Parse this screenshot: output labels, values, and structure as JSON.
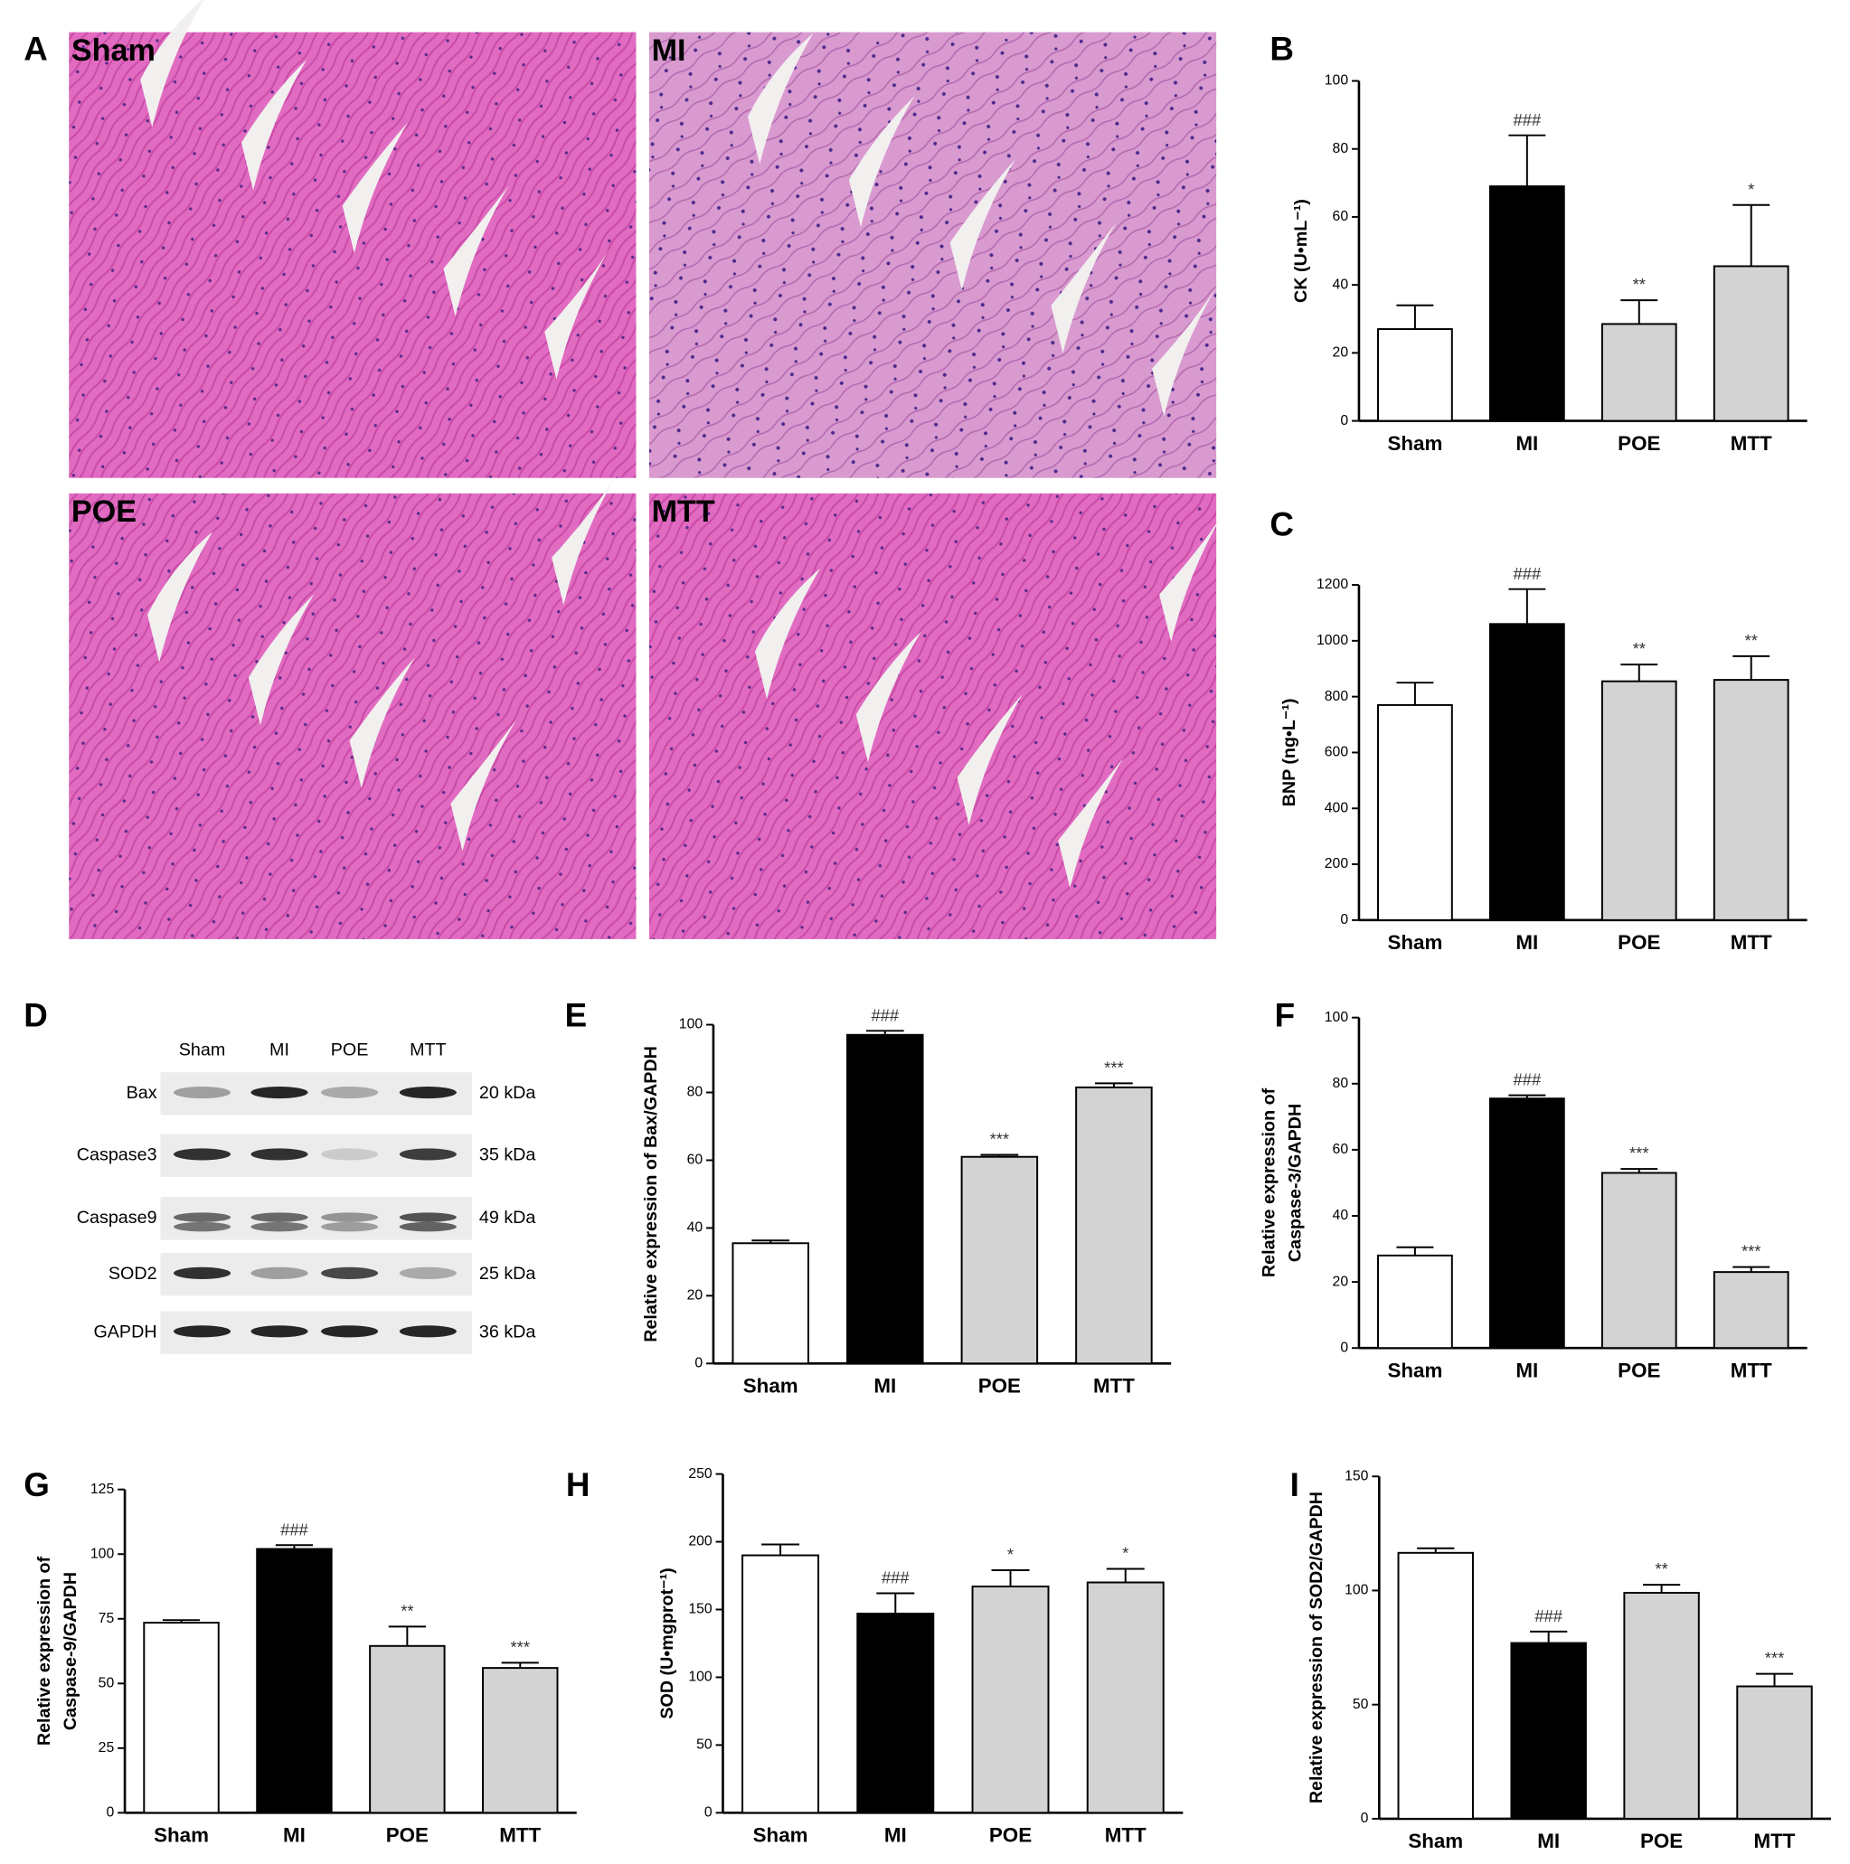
{
  "histology": {
    "panel": "A",
    "images": [
      "Sham",
      "MI",
      "POE",
      "MTT"
    ]
  },
  "western_blot": {
    "panel": "D",
    "lanes": [
      "Sham",
      "MI",
      "POE",
      "MTT"
    ],
    "proteins": [
      {
        "name": "Bax",
        "size": "20 kDa"
      },
      {
        "name": "Caspase3",
        "size": "35 kDa"
      },
      {
        "name": "Caspase9",
        "size": "49 kDa"
      },
      {
        "name": "SOD2",
        "size": "25 kDa"
      },
      {
        "name": "GAPDH",
        "size": "36 kDa"
      }
    ]
  },
  "chart_data": [
    {
      "type": "bar",
      "panel": "B",
      "ylabel": [
        "CK (U•mL⁻¹)"
      ],
      "categories": [
        "Sham",
        "MI",
        "POE",
        "MTT"
      ],
      "values": [
        27,
        69,
        28.5,
        45.5
      ],
      "errors": [
        7,
        15,
        7,
        18
      ],
      "annotations": [
        null,
        "###",
        "**",
        "*"
      ],
      "colors": [
        "#ffffff",
        "#000000",
        "#d3d3d3",
        "#d3d3d3"
      ],
      "ylim": [
        0,
        100
      ],
      "yticks": [
        0,
        20,
        40,
        60,
        80,
        100
      ]
    },
    {
      "type": "bar",
      "panel": "C",
      "ylabel": [
        "BNP (ng•L⁻¹)"
      ],
      "categories": [
        "Sham",
        "MI",
        "POE",
        "MTT"
      ],
      "values": [
        770,
        1060,
        855,
        860
      ],
      "errors": [
        80,
        125,
        60,
        85
      ],
      "annotations": [
        null,
        "###",
        "**",
        "**"
      ],
      "colors": [
        "#ffffff",
        "#000000",
        "#d3d3d3",
        "#d3d3d3"
      ],
      "ylim": [
        0,
        1200
      ],
      "yticks": [
        0,
        200,
        400,
        600,
        800,
        1000,
        1200
      ]
    },
    {
      "type": "bar",
      "panel": "E",
      "ylabel": [
        "Relative expression of Bax/GAPDH"
      ],
      "categories": [
        "Sham",
        "MI",
        "POE",
        "MTT"
      ],
      "values": [
        35.5,
        97,
        61,
        81.5
      ],
      "errors": [
        0.8,
        1.2,
        0.6,
        1.2
      ],
      "annotations": [
        null,
        "###",
        "***",
        "***"
      ],
      "colors": [
        "#ffffff",
        "#000000",
        "#d3d3d3",
        "#d3d3d3"
      ],
      "ylim": [
        0,
        100
      ],
      "yticks": [
        0,
        20,
        40,
        60,
        80,
        100
      ]
    },
    {
      "type": "bar",
      "panel": "F",
      "ylabel": [
        "Relative expression of",
        "Caspase-3/GAPDH"
      ],
      "categories": [
        "Sham",
        "MI",
        "POE",
        "MTT"
      ],
      "values": [
        28,
        75.5,
        53,
        23
      ],
      "errors": [
        2.5,
        1,
        1.2,
        1.5
      ],
      "annotations": [
        null,
        "###",
        "***",
        "***"
      ],
      "colors": [
        "#ffffff",
        "#000000",
        "#d3d3d3",
        "#d3d3d3"
      ],
      "ylim": [
        0,
        100
      ],
      "yticks": [
        0,
        20,
        40,
        60,
        80,
        100
      ]
    },
    {
      "type": "bar",
      "panel": "G",
      "ylabel": [
        "Relative expression of",
        "Caspase-9/GAPDH"
      ],
      "categories": [
        "Sham",
        "MI",
        "POE",
        "MTT"
      ],
      "values": [
        73.5,
        102,
        64.5,
        56
      ],
      "errors": [
        1,
        1.5,
        7.5,
        2
      ],
      "annotations": [
        null,
        "###",
        "**",
        "***"
      ],
      "colors": [
        "#ffffff",
        "#000000",
        "#d3d3d3",
        "#d3d3d3"
      ],
      "ylim": [
        0,
        125
      ],
      "yticks": [
        0,
        25,
        50,
        75,
        100,
        125
      ]
    },
    {
      "type": "bar",
      "panel": "H",
      "ylabel": [
        "SOD (U•mgprot⁻¹)"
      ],
      "categories": [
        "Sham",
        "MI",
        "POE",
        "MTT"
      ],
      "values": [
        190,
        147,
        167,
        170
      ],
      "errors": [
        8,
        15,
        12,
        10
      ],
      "annotations": [
        null,
        "###",
        "*",
        "*"
      ],
      "colors": [
        "#ffffff",
        "#000000",
        "#d3d3d3",
        "#d3d3d3"
      ],
      "ylim": [
        0,
        250
      ],
      "yticks": [
        0,
        50,
        100,
        150,
        200,
        250
      ]
    },
    {
      "type": "bar",
      "panel": "I",
      "ylabel": [
        "Relative expression of SOD2/GAPDH"
      ],
      "categories": [
        "Sham",
        "MI",
        "POE",
        "MTT"
      ],
      "values": [
        116.5,
        77,
        99,
        58
      ],
      "errors": [
        2,
        5,
        3.5,
        5.5
      ],
      "annotations": [
        null,
        "###",
        "**",
        "***"
      ],
      "colors": [
        "#ffffff",
        "#000000",
        "#d3d3d3",
        "#d3d3d3"
      ],
      "ylim": [
        0,
        150
      ],
      "yticks": [
        0,
        50,
        100,
        150
      ]
    }
  ]
}
